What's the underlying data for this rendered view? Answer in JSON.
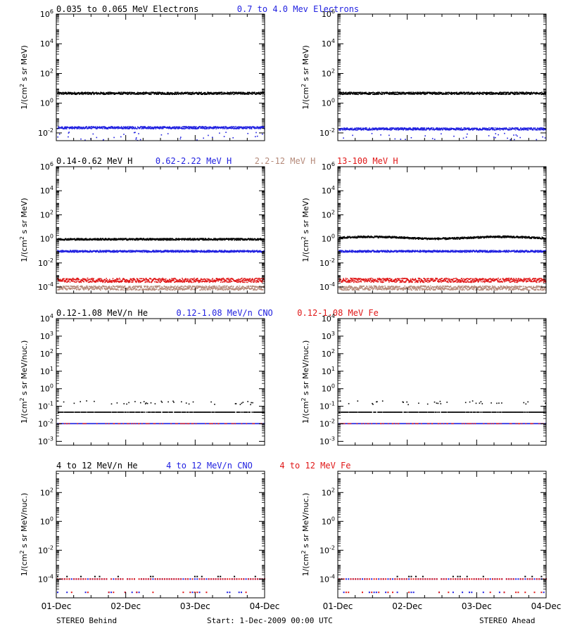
{
  "headers": {
    "row1": [
      "0.035 to 0.065 MeV Electrons",
      "0.7 to 4.0 Mev Electrons"
    ],
    "row2": [
      "0.14-0.62 MeV H",
      "0.62-2.22 MeV H",
      "2.2-12 MeV H",
      "13-100 MeV H"
    ],
    "row3": [
      "0.12-1.08 MeV/n He",
      "0.12-1.08 MeV/n CNO",
      "0.12-1.08 MeV Fe"
    ],
    "row4": [
      "4 to 12 MeV/n He",
      "4 to 12 MeV/n CNO",
      "4 to 12 MeV Fe"
    ]
  },
  "footer": {
    "left": "STEREO Behind",
    "center": "Start:  1-Dec-2009 00:00 UTC",
    "right": "STEREO Ahead"
  },
  "colors": {
    "black": "#000000",
    "blue": "#1f1fe0",
    "brown": "#b58a7a",
    "red": "#e01818"
  },
  "chart_data": [
    {
      "type": "scatter",
      "row": 1,
      "spacecraft": "STEREO Behind",
      "ylabel": "1/(cm2 s sr MeV)",
      "yscale": "log",
      "ylim": [
        0.003,
        1000000
      ],
      "yticks": [
        {
          "exp": "-2",
          "v": 0.01
        },
        {
          "exp": "0",
          "v": 1
        },
        {
          "exp": "2",
          "v": 100
        },
        {
          "exp": "4",
          "v": 10000
        },
        {
          "exp": "6",
          "v": 1000000
        }
      ],
      "xticks": [
        "01-Dec",
        "02-Dec",
        "03-Dec",
        "04-Dec"
      ],
      "series": [
        {
          "name": "0.035 to 0.065 MeV Electrons",
          "color": "black",
          "level": 4.5
        },
        {
          "name": "0.7 to 4.0 Mev Electrons",
          "color": "blue",
          "level": 0.022
        }
      ]
    },
    {
      "type": "scatter",
      "row": 1,
      "spacecraft": "STEREO Ahead",
      "ylabel": "1/(cm2 s sr MeV)",
      "yscale": "log",
      "ylim": [
        0.003,
        1000000
      ],
      "yticks": [
        {
          "exp": "-2",
          "v": 0.01
        },
        {
          "exp": "0",
          "v": 1
        },
        {
          "exp": "2",
          "v": 100
        },
        {
          "exp": "4",
          "v": 10000
        },
        {
          "exp": "6",
          "v": 1000000
        }
      ],
      "xticks": [
        "01-Dec",
        "02-Dec",
        "03-Dec",
        "04-Dec"
      ],
      "series": [
        {
          "name": "0.035 to 0.065 MeV Electrons",
          "color": "black",
          "level": 4.5
        },
        {
          "name": "0.7 to 4.0 Mev Electrons",
          "color": "blue",
          "level": 0.018
        }
      ]
    },
    {
      "type": "scatter",
      "row": 2,
      "spacecraft": "STEREO Behind",
      "ylabel": "1/(cm2 s sr MeV)",
      "yscale": "log",
      "ylim": [
        3e-05,
        1000000
      ],
      "yticks": [
        {
          "exp": "-4",
          "v": 0.0001
        },
        {
          "exp": "-2",
          "v": 0.01
        },
        {
          "exp": "0",
          "v": 1
        },
        {
          "exp": "2",
          "v": 100
        },
        {
          "exp": "4",
          "v": 10000
        },
        {
          "exp": "6",
          "v": 1000000
        }
      ],
      "xticks": [
        "01-Dec",
        "02-Dec",
        "03-Dec",
        "04-Dec"
      ],
      "series": [
        {
          "name": "0.14-0.62 MeV H",
          "color": "black",
          "level": 0.9
        },
        {
          "name": "0.62-2.22 MeV H",
          "color": "blue",
          "level": 0.09
        },
        {
          "name": "2.2-12 MeV H",
          "color": "brown",
          "level": 8e-05
        },
        {
          "name": "13-100 MeV H",
          "color": "red",
          "level": 0.00035
        }
      ]
    },
    {
      "type": "scatter",
      "row": 2,
      "spacecraft": "STEREO Ahead",
      "ylabel": "1/(cm2 s sr MeV)",
      "yscale": "log",
      "ylim": [
        3e-05,
        1000000
      ],
      "yticks": [
        {
          "exp": "-4",
          "v": 0.0001
        },
        {
          "exp": "-2",
          "v": 0.01
        },
        {
          "exp": "0",
          "v": 1
        },
        {
          "exp": "2",
          "v": 100
        },
        {
          "exp": "4",
          "v": 10000
        },
        {
          "exp": "6",
          "v": 1000000
        }
      ],
      "xticks": [
        "01-Dec",
        "02-Dec",
        "03-Dec",
        "04-Dec"
      ],
      "series": [
        {
          "name": "0.14-0.62 MeV H",
          "color": "black",
          "level": 1.2
        },
        {
          "name": "0.62-2.22 MeV H",
          "color": "blue",
          "level": 0.09
        },
        {
          "name": "2.2-12 MeV H",
          "color": "brown",
          "level": 8e-05
        },
        {
          "name": "13-100 MeV H",
          "color": "red",
          "level": 0.00035
        }
      ]
    },
    {
      "type": "scatter",
      "row": 3,
      "spacecraft": "STEREO Behind",
      "ylabel": "1/(cm2 s sr MeV/nuc.)",
      "yscale": "log",
      "ylim": [
        0.0006,
        10000
      ],
      "yticks": [
        {
          "exp": "-3",
          "v": 0.001
        },
        {
          "exp": "-2",
          "v": 0.01
        },
        {
          "exp": "-1",
          "v": 0.1
        },
        {
          "exp": "0",
          "v": 1
        },
        {
          "exp": "1",
          "v": 10
        },
        {
          "exp": "2",
          "v": 100
        },
        {
          "exp": "3",
          "v": 1000
        },
        {
          "exp": "4",
          "v": 10000
        }
      ],
      "xticks": [
        "01-Dec",
        "02-Dec",
        "03-Dec",
        "04-Dec"
      ],
      "series": [
        {
          "name": "0.12-1.08 MeV/n He",
          "color": "black",
          "level": 0.045
        },
        {
          "name": "0.12-1.08 MeV/n CNO",
          "color": "blue",
          "level": 0.01
        },
        {
          "name": "0.12-1.08 MeV Fe",
          "color": "red",
          "level": 0.01
        }
      ]
    },
    {
      "type": "scatter",
      "row": 3,
      "spacecraft": "STEREO Ahead",
      "ylabel": "1/(cm2 s sr MeV/nuc.)",
      "yscale": "log",
      "ylim": [
        0.0006,
        10000
      ],
      "yticks": [
        {
          "exp": "-3",
          "v": 0.001
        },
        {
          "exp": "-2",
          "v": 0.01
        },
        {
          "exp": "-1",
          "v": 0.1
        },
        {
          "exp": "0",
          "v": 1
        },
        {
          "exp": "1",
          "v": 10
        },
        {
          "exp": "2",
          "v": 100
        },
        {
          "exp": "3",
          "v": 1000
        },
        {
          "exp": "4",
          "v": 10000
        }
      ],
      "xticks": [
        "01-Dec",
        "02-Dec",
        "03-Dec",
        "04-Dec"
      ],
      "series": [
        {
          "name": "0.12-1.08 MeV/n He",
          "color": "black",
          "level": 0.045
        },
        {
          "name": "0.12-1.08 MeV/n CNO",
          "color": "blue",
          "level": 0.01
        },
        {
          "name": "0.12-1.08 MeV Fe",
          "color": "red",
          "level": 0.01
        }
      ]
    },
    {
      "type": "scatter",
      "row": 4,
      "spacecraft": "STEREO Behind",
      "ylabel": "1/(cm2 s sr MeV/nuc.)",
      "yscale": "log",
      "ylim": [
        5e-06,
        3000
      ],
      "yticks": [
        {
          "exp": "-4",
          "v": 0.0001
        },
        {
          "exp": "-2",
          "v": 0.01
        },
        {
          "exp": "0",
          "v": 1
        },
        {
          "exp": "2",
          "v": 100
        }
      ],
      "xticks": [
        "01-Dec",
        "02-Dec",
        "03-Dec",
        "04-Dec"
      ],
      "series": [
        {
          "name": "4 to 12 MeV/n He",
          "color": "black",
          "level": 0.00015
        },
        {
          "name": "4 to 12 MeV/n CNO",
          "color": "blue",
          "level": 0.0001
        },
        {
          "name": "4 to 12 MeV Fe",
          "color": "red",
          "level": 0.0001
        }
      ]
    },
    {
      "type": "scatter",
      "row": 4,
      "spacecraft": "STEREO Ahead",
      "ylabel": "1/(cm2 s sr MeV/nuc.)",
      "yscale": "log",
      "ylim": [
        5e-06,
        3000
      ],
      "yticks": [
        {
          "exp": "-4",
          "v": 0.0001
        },
        {
          "exp": "-2",
          "v": 0.01
        },
        {
          "exp": "0",
          "v": 1
        },
        {
          "exp": "2",
          "v": 100
        }
      ],
      "xticks": [
        "01-Dec",
        "02-Dec",
        "03-Dec",
        "04-Dec"
      ],
      "series": [
        {
          "name": "4 to 12 MeV/n He",
          "color": "black",
          "level": 0.00015
        },
        {
          "name": "4 to 12 MeV/n CNO",
          "color": "blue",
          "level": 0.0001
        },
        {
          "name": "4 to 12 MeV Fe",
          "color": "red",
          "level": 0.0001
        }
      ]
    }
  ]
}
